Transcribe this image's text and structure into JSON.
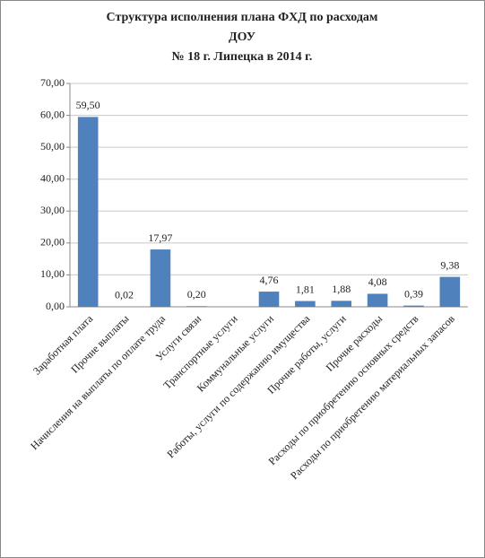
{
  "chart_data": {
    "type": "bar",
    "title": [
      "Структура исполнения плана ФХД по расходам",
      "ДОУ",
      "№ 18 г. Липецка в 2014 г."
    ],
    "categories": [
      "Заработная плата",
      "Прочие выплаты",
      "Начисления на выплаты по оплате труда",
      "Услуги связи",
      "Транспортные услуги",
      "Коммунальные услуги",
      "Работы, услуги по содержанию имущества",
      "Прочие работы, услуги",
      "Прочие расходы",
      "Расходы по приобретению основных средств",
      "Расходы по приобретению материальных запасов"
    ],
    "values": [
      59.5,
      0.02,
      17.97,
      0.2,
      null,
      4.76,
      1.81,
      1.88,
      4.08,
      0.39,
      9.38
    ],
    "value_labels": [
      "59,50",
      "0,02",
      "17,97",
      "0,20",
      null,
      "4,76",
      "1,81",
      "1,88",
      "4,08",
      "0,39",
      "9,38"
    ],
    "color": "#4f81bd",
    "ylim": [
      0,
      70
    ],
    "yticks": [
      {
        "value": 0,
        "label": "0,00"
      },
      {
        "value": 10,
        "label": "10,00"
      },
      {
        "value": 20,
        "label": "20,00"
      },
      {
        "value": 30,
        "label": "30,00"
      },
      {
        "value": 40,
        "label": "40,00"
      },
      {
        "value": 50,
        "label": "50,00"
      },
      {
        "value": 60,
        "label": "60,00"
      },
      {
        "value": 70,
        "label": "70,00"
      }
    ],
    "grid": true
  }
}
